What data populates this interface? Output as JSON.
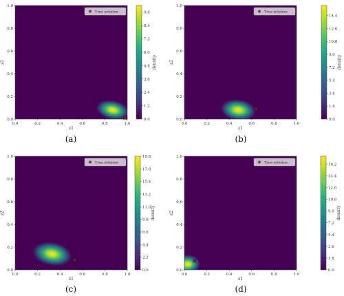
{
  "chart_data": [
    {
      "type": "heatmap",
      "caption": "(a)",
      "xlabel": "z1",
      "ylabel": "z2",
      "xlim": [
        0.0,
        1.0
      ],
      "ylim": [
        0.0,
        1.0
      ],
      "xticks": [
        "0.0",
        "0.2",
        "0.4",
        "0.6",
        "0.8",
        "1.0"
      ],
      "yticks": [
        "0.0",
        "0.2",
        "0.4",
        "0.6",
        "0.8",
        "1.0"
      ],
      "legend": "True solution",
      "legend_loc": "top-right",
      "true_solution": [
        0.98,
        0.01
      ],
      "density_peak": [
        0.87,
        0.08
      ],
      "colorbar_label": "density",
      "colorbar_ticks": [
        "0.0",
        "1.2",
        "2.4",
        "3.6",
        "4.8",
        "6.0",
        "7.2",
        "8.4",
        "9.6"
      ],
      "colorbar_range": [
        0.0,
        10.2
      ]
    },
    {
      "type": "heatmap",
      "caption": "(b)",
      "xlabel": "z1",
      "ylabel": "z2",
      "xlim": [
        0.0,
        1.0
      ],
      "ylim": [
        0.0,
        1.0
      ],
      "xticks": [
        "0.0",
        "0.2",
        "0.4",
        "0.6",
        "0.8",
        "1.0"
      ],
      "yticks": [
        "0.0",
        "0.2",
        "0.4",
        "0.6",
        "0.8",
        "1.0"
      ],
      "legend": "True solution",
      "legend_loc": "top-right",
      "true_solution": [
        0.64,
        0.09
      ],
      "density_peak": [
        0.48,
        0.08
      ],
      "colorbar_label": "density",
      "colorbar_ticks": [
        "0.0",
        "1.8",
        "3.6",
        "5.4",
        "7.2",
        "9.0",
        "10.8",
        "12.6",
        "14.4"
      ],
      "colorbar_range": [
        0.0,
        15.8
      ]
    },
    {
      "type": "heatmap",
      "caption": "(c)",
      "xlabel": "z1",
      "ylabel": "z2",
      "xlim": [
        0.0,
        1.0
      ],
      "ylim": [
        0.0,
        1.0
      ],
      "xticks": [
        "0.0",
        "0.2",
        "0.4",
        "0.6",
        "0.8",
        "1.0"
      ],
      "yticks": [
        "0.0",
        "0.2",
        "0.4",
        "0.6",
        "0.8",
        "1.0"
      ],
      "legend": "True solution",
      "legend_loc": "top-right",
      "true_solution": [
        0.53,
        0.09
      ],
      "density_peak": [
        0.33,
        0.14
      ],
      "colorbar_label": "density",
      "colorbar_ticks": [
        "0.0",
        "2.2",
        "4.4",
        "6.6",
        "8.8",
        "11.0",
        "13.2",
        "15.4",
        "17.6",
        "19.8"
      ],
      "colorbar_range": [
        0.0,
        19.8
      ]
    },
    {
      "type": "heatmap",
      "caption": "(d)",
      "xlabel": "z1",
      "ylabel": "z2",
      "xlim": [
        0.0,
        1.0
      ],
      "ylim": [
        0.0,
        1.0
      ],
      "xticks": [
        "0.0",
        "0.2",
        "0.4",
        "0.6",
        "0.8",
        "1.0"
      ],
      "yticks": [
        "0.0",
        "0.2",
        "0.4",
        "0.6",
        "0.8",
        "1.0"
      ],
      "legend": "True solution",
      "legend_loc": "top-right",
      "true_solution": [
        0.09,
        0.08
      ],
      "density_peak": [
        0.03,
        0.05
      ],
      "colorbar_label": "density",
      "colorbar_ticks": [
        "0.0",
        "1.8",
        "3.6",
        "5.4",
        "7.2",
        "9.0",
        "10.8",
        "12.6",
        "14.4",
        "16.2"
      ],
      "colorbar_range": [
        0.0,
        17.4
      ]
    }
  ]
}
